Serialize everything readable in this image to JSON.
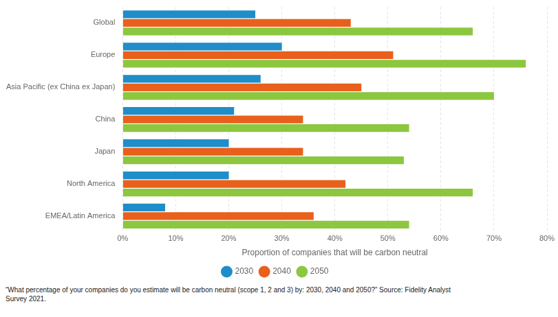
{
  "chart_data": {
    "type": "bar",
    "orientation": "horizontal",
    "categories": [
      "Global",
      "Europe",
      "Asia Pacific (ex China ex Japan)",
      "China",
      "Japan",
      "North America",
      "EMEA/Latin America"
    ],
    "series": [
      {
        "name": "2030",
        "color": "#1f8dc8",
        "values": [
          25,
          30,
          26,
          21,
          20,
          20,
          8
        ]
      },
      {
        "name": "2040",
        "color": "#e8601c",
        "values": [
          43,
          51,
          45,
          34,
          34,
          42,
          36
        ]
      },
      {
        "name": "2050",
        "color": "#8dc63f",
        "values": [
          66,
          76,
          70,
          54,
          53,
          66,
          54
        ]
      }
    ],
    "xlabel": "Proportion of companies that will be carbon neutral",
    "xlim": [
      0,
      80
    ],
    "xticks": [
      {
        "value": 0,
        "label": "0%"
      },
      {
        "value": 10,
        "label": "10%"
      },
      {
        "value": 20,
        "label": "20%"
      },
      {
        "value": 30,
        "label": "30%"
      },
      {
        "value": 40,
        "label": "40%"
      },
      {
        "value": 50,
        "label": "50%"
      },
      {
        "value": 60,
        "label": "60%"
      },
      {
        "value": 70,
        "label": "70%"
      },
      {
        "value": 80,
        "label": "80%"
      }
    ],
    "grid": true,
    "legend": "bottom",
    "annotations": [
      "“What percentage of your companies do you estimate will be carbon neutral (scope 1, 2 and 3) by: 2030, 2040 and 2050?” Source: Fidelity Analyst\nSurvey 2021."
    ]
  }
}
